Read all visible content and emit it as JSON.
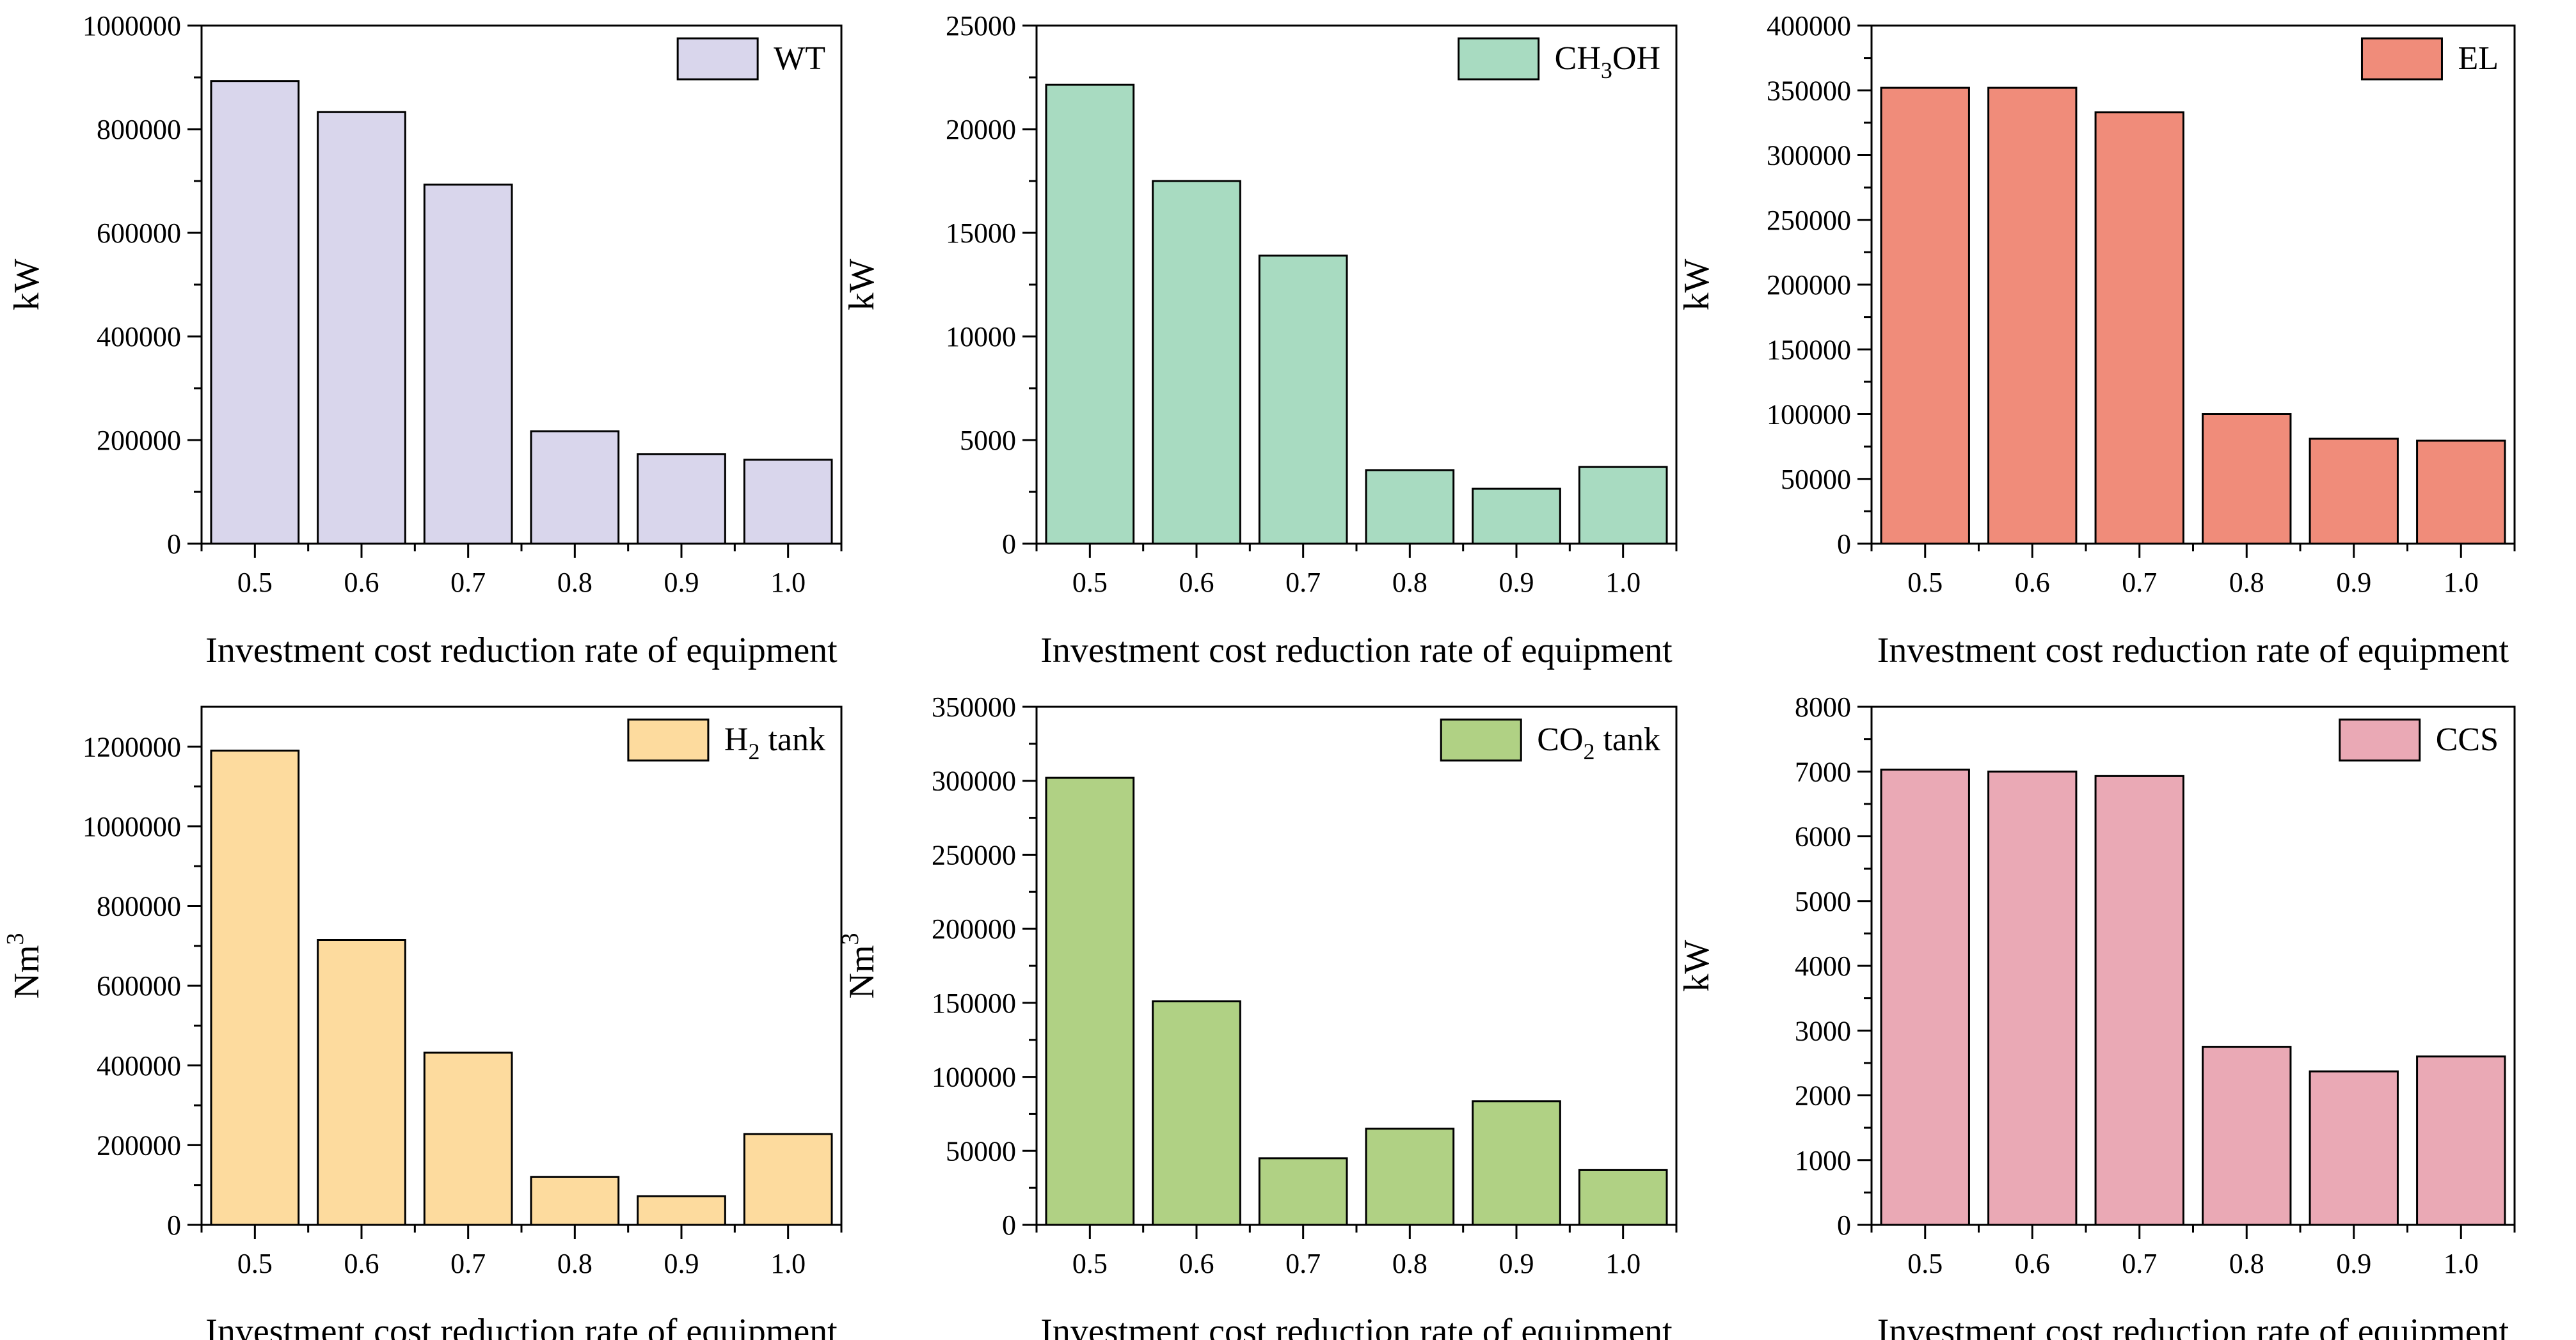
{
  "chart_data": [
    {
      "type": "bar",
      "categories": [
        "0.5",
        "0.6",
        "0.7",
        "0.8",
        "0.9",
        "1.0"
      ],
      "values": [
        893000,
        833000,
        693000,
        217000,
        173000,
        162000
      ],
      "ylim": [
        0,
        1000000
      ],
      "yticks": [
        "0",
        "200000",
        "400000",
        "600000",
        "800000",
        "1000000"
      ],
      "ylabel": "kW",
      "xlabel": "Investment cost reduction rate of equipment",
      "legend": {
        "label": "WT"
      },
      "color": "#d9d6ec"
    },
    {
      "type": "bar",
      "categories": [
        "0.5",
        "0.6",
        "0.7",
        "0.8",
        "0.9",
        "1.0"
      ],
      "values": [
        22150,
        17500,
        13900,
        3550,
        2650,
        3700
      ],
      "ylim": [
        0,
        25000
      ],
      "yticks": [
        "0",
        "5000",
        "10000",
        "15000",
        "20000",
        "25000"
      ],
      "ylabel": "kW",
      "xlabel": "Investment cost reduction rate of equipment",
      "legend": {
        "label": "CH",
        "sub": "3",
        "label_suffix": "OH"
      },
      "color": "#a8dbc1"
    },
    {
      "type": "bar",
      "categories": [
        "0.5",
        "0.6",
        "0.7",
        "0.8",
        "0.9",
        "1.0"
      ],
      "values": [
        352000,
        352000,
        333000,
        100000,
        81000,
        79500
      ],
      "ylim": [
        0,
        400000
      ],
      "yticks": [
        "0",
        "50000",
        "100000",
        "150000",
        "200000",
        "250000",
        "300000",
        "350000",
        "400000"
      ],
      "ylabel": "kW",
      "xlabel": "Investment cost reduction rate of equipment",
      "legend": {
        "label": "EL"
      },
      "color": "#f08c7a"
    },
    {
      "type": "bar",
      "categories": [
        "0.5",
        "0.6",
        "0.7",
        "0.8",
        "0.9",
        "1.0"
      ],
      "values": [
        1190000,
        715000,
        432000,
        120000,
        72000,
        228000
      ],
      "ylim": [
        0,
        1300000
      ],
      "yticks": [
        "0",
        "200000",
        "400000",
        "600000",
        "800000",
        "1000000",
        "1200000"
      ],
      "ytick_step": 200000,
      "ylabel": "Nm",
      "ylabel_sup": "3",
      "xlabel": "Investment cost reduction rate of equipment",
      "legend": {
        "label": "H",
        "sub": "2",
        "label_suffix": " tank"
      },
      "color": "#fddb9e"
    },
    {
      "type": "bar",
      "categories": [
        "0.5",
        "0.6",
        "0.7",
        "0.8",
        "0.9",
        "1.0"
      ],
      "values": [
        302000,
        151000,
        45000,
        65000,
        83500,
        37000
      ],
      "ylim": [
        0,
        350000
      ],
      "yticks": [
        "0",
        "50000",
        "100000",
        "150000",
        "200000",
        "250000",
        "300000",
        "350000"
      ],
      "ylabel": "Nm",
      "ylabel_sup": "3",
      "xlabel": "Investment cost reduction rate of equipment",
      "legend": {
        "label": "CO",
        "sub": "2",
        "label_suffix": " tank"
      },
      "color": "#b0d184"
    },
    {
      "type": "bar",
      "categories": [
        "0.5",
        "0.6",
        "0.7",
        "0.8",
        "0.9",
        "1.0"
      ],
      "values": [
        7030,
        7000,
        6930,
        2750,
        2370,
        2600
      ],
      "ylim": [
        0,
        8000
      ],
      "yticks": [
        "0",
        "1000",
        "2000",
        "3000",
        "4000",
        "5000",
        "6000",
        "7000",
        "8000"
      ],
      "ylabel": "kW",
      "xlabel": "Investment cost reduction rate of equipment",
      "legend": {
        "label": "CCS"
      },
      "color": "#eaa9b5"
    }
  ]
}
